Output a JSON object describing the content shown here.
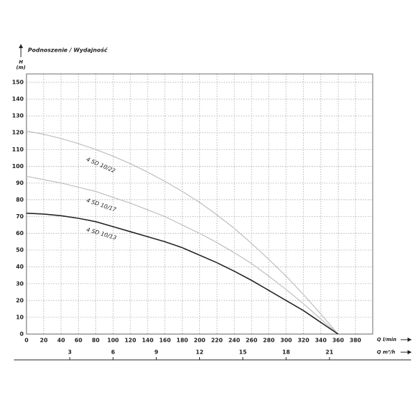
{
  "chart_data": {
    "type": "line",
    "title": "Podnoszenie / Wydajność",
    "y_label": "H",
    "y_unit": "(m)",
    "x_label": "Q l/min",
    "x2_label": "Q m³/h",
    "x": [
      0,
      20,
      40,
      60,
      80,
      100,
      120,
      140,
      160,
      180,
      200,
      220,
      240,
      260,
      280,
      300,
      320,
      340,
      360
    ],
    "series": [
      {
        "name": "4 SD 10/22",
        "color": "#bdbdbd",
        "values": [
          121,
          119,
          116.5,
          113.5,
          110,
          106,
          101.5,
          96.5,
          91,
          85,
          78.5,
          71,
          63,
          54,
          44.5,
          34.5,
          23.5,
          12,
          0
        ]
      },
      {
        "name": "4 SD 10/17",
        "color": "#bdbdbd",
        "values": [
          94,
          92,
          90,
          87.5,
          85,
          81.5,
          78,
          74,
          70,
          65,
          60,
          54.5,
          48.5,
          42,
          34.5,
          26.5,
          18,
          9,
          0
        ]
      },
      {
        "name": "4 SD 10/13",
        "color": "#222222",
        "values": [
          72,
          71.5,
          70.5,
          69,
          67,
          64,
          61,
          58,
          55,
          51.5,
          47,
          42.5,
          37.5,
          32,
          26,
          20,
          14,
          7,
          0
        ]
      }
    ],
    "xlim": [
      0,
      400
    ],
    "ylim": [
      0,
      155
    ],
    "xticks": [
      0,
      20,
      40,
      60,
      80,
      100,
      120,
      140,
      160,
      180,
      200,
      220,
      240,
      260,
      280,
      300,
      320,
      340,
      360,
      380
    ],
    "yticks": [
      0,
      10,
      20,
      30,
      40,
      50,
      60,
      70,
      80,
      90,
      100,
      110,
      120,
      130,
      140,
      150
    ],
    "x2lim": [
      0,
      24
    ],
    "x2ticks": [
      3,
      6,
      9,
      12,
      15,
      18,
      21
    ],
    "grid": true
  }
}
